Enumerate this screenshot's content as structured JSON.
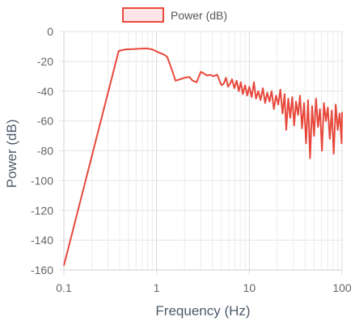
{
  "chart_data": {
    "type": "line",
    "title": "",
    "xlabel": "Frequency (Hz)",
    "ylabel": "Power (dB)",
    "x_scale": "log",
    "xlim": [
      0.1,
      100
    ],
    "ylim": [
      -160,
      0
    ],
    "x_ticks": [
      "0.1",
      "1",
      "10",
      "100"
    ],
    "y_ticks": [
      "0",
      "-20",
      "-40",
      "-60",
      "-80",
      "-100",
      "-120",
      "-140",
      "-160"
    ],
    "grid": true,
    "legend_position": "top-center",
    "series": [
      {
        "name": "Power (dB)",
        "color": "#e8483c",
        "fill": "#fde4e6",
        "x": [
          0.1,
          0.39,
          0.46,
          0.55,
          0.65,
          0.78,
          0.9,
          1.05,
          1.2,
          1.3,
          1.45,
          1.6,
          1.8,
          2.0,
          2.25,
          2.45,
          2.7,
          3.0,
          3.2,
          3.5,
          3.8,
          4.1,
          4.5,
          5.0,
          5.3,
          5.6,
          5.9,
          6.2,
          6.5,
          6.9,
          7.3,
          7.7,
          8.1,
          8.5,
          9.0,
          9.5,
          10.0,
          10.6,
          11.2,
          11.8,
          12.5,
          13.2,
          14.0,
          14.8,
          15.6,
          16.5,
          17.4,
          18.4,
          19.4,
          20.5,
          21.6,
          22.8,
          24.0,
          25.0,
          26.3,
          27.6,
          29.0,
          30.4,
          31.9,
          33.5,
          35.2,
          37.0,
          38.9,
          40.9,
          43.0,
          45.2,
          47.5,
          49.9,
          52.4,
          55.0,
          57.8,
          60.7,
          63.7,
          66.9,
          70.2,
          73.7,
          77.4,
          81.3,
          85.4,
          89.7,
          94.2,
          98.9,
          100
        ],
        "y": [
          -157,
          -13,
          -12,
          -11.8,
          -11.5,
          -11.3,
          -12,
          -14,
          -15.5,
          -17,
          -25,
          -33,
          -32,
          -31,
          -30.5,
          -33,
          -34,
          -27,
          -28,
          -29.5,
          -29,
          -30,
          -29,
          -36,
          -35,
          -31,
          -37,
          -35,
          -32,
          -38,
          -33,
          -40,
          -34,
          -42,
          -36,
          -43,
          -37,
          -44,
          -34,
          -45,
          -40,
          -46,
          -38,
          -48,
          -41,
          -47,
          -40,
          -52,
          -43,
          -49,
          -39,
          -55,
          -42,
          -66,
          -45,
          -58,
          -44,
          -63,
          -47,
          -56,
          -43,
          -65,
          -48,
          -75,
          -46,
          -85,
          -50,
          -70,
          -45,
          -64,
          -52,
          -80,
          -48,
          -60,
          -51,
          -72,
          -53,
          -82,
          -49,
          -66,
          -55,
          -75,
          -54
        ]
      }
    ]
  }
}
